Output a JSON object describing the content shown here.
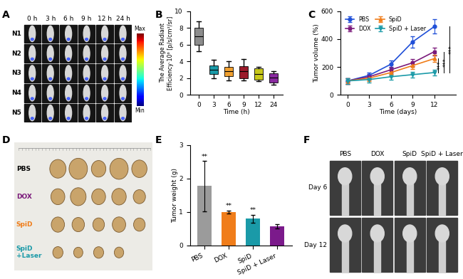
{
  "chart_data": [
    {
      "type": "image_grid",
      "panel": "A",
      "column_labels": [
        "0 h",
        "3 h",
        "6 h",
        "9 h",
        "12 h",
        "24 h"
      ],
      "row_labels": [
        "N1",
        "N2",
        "N3",
        "N4",
        "N5"
      ],
      "colorbar_labels": [
        "Max",
        "Min"
      ]
    },
    {
      "type": "box",
      "panel": "B",
      "categories": [
        "0",
        "3",
        "6",
        "9",
        "12",
        "24"
      ],
      "boxes": [
        {
          "whislo": 5.2,
          "q1": 6.0,
          "med": 7.0,
          "q3": 8.0,
          "whishi": 8.8
        },
        {
          "whislo": 2.0,
          "q1": 2.5,
          "med": 3.0,
          "q3": 3.5,
          "whishi": 4.2
        },
        {
          "whislo": 1.7,
          "q1": 2.2,
          "med": 2.8,
          "q3": 3.3,
          "whishi": 4.0
        },
        {
          "whislo": 1.7,
          "q1": 2.0,
          "med": 2.8,
          "q3": 3.4,
          "whishi": 4.3
        },
        {
          "whislo": 1.6,
          "q1": 1.8,
          "med": 2.5,
          "q3": 3.2,
          "whishi": 3.3
        },
        {
          "whislo": 1.2,
          "q1": 1.5,
          "med": 2.1,
          "q3": 2.6,
          "whishi": 2.8
        }
      ],
      "colors": [
        "#8c8c8c",
        "#1a9aa8",
        "#f0a030",
        "#9b1a2a",
        "#c8c81a",
        "#8a2aa0"
      ],
      "x_label": "Time (h)",
      "y_label": "The Average Radiant\nEfficiency·10⁶ [p/s/cm²/sr]",
      "ylim": [
        0,
        10
      ],
      "yticks": [
        0,
        2,
        4,
        6,
        8,
        10
      ]
    },
    {
      "type": "line",
      "panel": "C",
      "x": [
        0,
        3,
        6,
        9,
        12
      ],
      "series": [
        {
          "name": "PBS",
          "color": "#1f4fd8",
          "marker": "circle",
          "values": [
            100,
            140,
            220,
            380,
            490
          ],
          "error": [
            20,
            20,
            25,
            40,
            50
          ]
        },
        {
          "name": "DOX",
          "color": "#7b1a7b",
          "marker": "square",
          "values": [
            100,
            130,
            180,
            230,
            310
          ],
          "error": [
            20,
            20,
            20,
            25,
            30
          ]
        },
        {
          "name": "SpiD",
          "color": "#f07d1a",
          "marker": "triangle_up",
          "values": [
            100,
            120,
            160,
            210,
            260
          ],
          "error": [
            20,
            20,
            20,
            25,
            25
          ]
        },
        {
          "name": "SpiD + Laser",
          "color": "#1a9aa8",
          "marker": "triangle_down",
          "values": [
            100,
            110,
            130,
            145,
            160
          ],
          "error": [
            20,
            20,
            20,
            20,
            20
          ]
        }
      ],
      "annotations": [
        "***",
        "***",
        "***"
      ],
      "x_label": "Time (days)",
      "y_label": "Tumor volume (%)",
      "xlim": [
        -1,
        15
      ],
      "xticks": [
        0,
        3,
        6,
        9,
        12
      ],
      "ylim": [
        0,
        600
      ],
      "yticks": [
        0,
        200,
        400,
        600
      ],
      "legend": "upper left"
    },
    {
      "type": "image_grid",
      "panel": "D",
      "row_labels": [
        "PBS",
        "DOX",
        "SpiD",
        "SpiD\n+Laser"
      ],
      "colors": [
        "#000000",
        "#7b1a7b",
        "#f07d1a",
        "#1a9aa8"
      ]
    },
    {
      "type": "bar",
      "panel": "E",
      "categories": [
        "PBS",
        "DOX",
        "SpiD",
        "SpiD + Laser"
      ],
      "values": [
        1.78,
        1.0,
        0.8,
        0.57
      ],
      "error": [
        0.75,
        0.05,
        0.12,
        0.06
      ],
      "colors": [
        "#9b9b9b",
        "#f07d1a",
        "#1a9aa8",
        "#7b1a8b"
      ],
      "annotations": [
        "**",
        "**",
        "**",
        null
      ],
      "y_label": "Tumor weight (g)",
      "ylim": [
        0,
        3
      ],
      "yticks": [
        0,
        1,
        2,
        3
      ]
    },
    {
      "type": "image_grid",
      "panel": "F",
      "column_labels": [
        "PBS",
        "DOX",
        "SpiD",
        "SpiD + Laser"
      ],
      "row_labels": [
        "Day 6",
        "Day 12"
      ]
    }
  ]
}
